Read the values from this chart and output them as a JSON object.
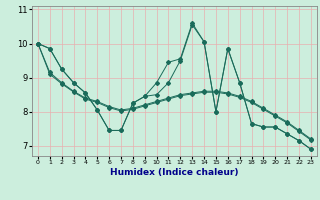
{
  "xlabel": "Humidex (Indice chaleur)",
  "background_color": "#cceedd",
  "grid_color": "#e8b0b0",
  "line_color": "#1a6b5a",
  "xlim": [
    -0.5,
    23.5
  ],
  "ylim": [
    6.7,
    11.1
  ],
  "yticks": [
    7,
    8,
    9,
    10,
    11
  ],
  "xticks": [
    0,
    1,
    2,
    3,
    4,
    5,
    6,
    7,
    8,
    9,
    10,
    11,
    12,
    13,
    14,
    15,
    16,
    17,
    18,
    19,
    20,
    21,
    22,
    23
  ],
  "line1": [
    10.0,
    9.85,
    9.25,
    8.85,
    8.55,
    8.05,
    7.45,
    7.45,
    8.25,
    8.45,
    8.85,
    9.45,
    9.55,
    10.6,
    10.05,
    8.0,
    9.85,
    8.85,
    7.65,
    7.55,
    7.55,
    7.35,
    7.15,
    6.9
  ],
  "line2": [
    10.0,
    9.85,
    9.25,
    8.85,
    8.55,
    8.05,
    7.45,
    7.45,
    8.25,
    8.45,
    8.5,
    8.85,
    9.5,
    10.55,
    10.05,
    8.0,
    9.85,
    8.85,
    7.65,
    7.55,
    7.55,
    7.35,
    7.15,
    6.9
  ],
  "line3": [
    10.0,
    9.15,
    8.85,
    8.6,
    8.4,
    8.3,
    8.15,
    8.05,
    8.1,
    8.2,
    8.3,
    8.4,
    8.5,
    8.55,
    8.6,
    8.6,
    8.55,
    8.45,
    8.3,
    8.1,
    7.9,
    7.7,
    7.45,
    7.2
  ],
  "line4": [
    10.0,
    9.1,
    8.82,
    8.58,
    8.37,
    8.27,
    8.12,
    8.02,
    8.07,
    8.17,
    8.27,
    8.37,
    8.47,
    8.52,
    8.57,
    8.57,
    8.52,
    8.42,
    8.27,
    8.07,
    7.87,
    7.67,
    7.42,
    7.17
  ]
}
